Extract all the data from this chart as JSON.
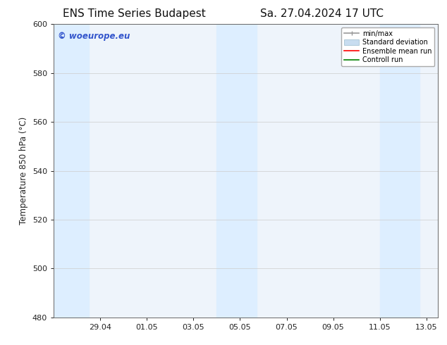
{
  "title_left": "ENS Time Series Budapest",
  "title_right": "Sa. 27.04.2024 17 UTC",
  "ylabel": "Temperature 850 hPa (°C)",
  "ylim": [
    480,
    600
  ],
  "yticks": [
    480,
    500,
    520,
    540,
    560,
    580,
    600
  ],
  "xtick_labels": [
    "29.04",
    "01.05",
    "03.05",
    "05.05",
    "07.05",
    "09.05",
    "11.05",
    "13.05"
  ],
  "shade_color": "#ddeeff",
  "watermark_text": "© woeurope.eu",
  "watermark_color": "#3355cc",
  "bg_color": "#ffffff",
  "plot_bg_color": "#eef4fb",
  "spine_color": "#666666",
  "tick_color": "#222222",
  "title_fontsize": 11,
  "label_fontsize": 8.5,
  "tick_fontsize": 8
}
